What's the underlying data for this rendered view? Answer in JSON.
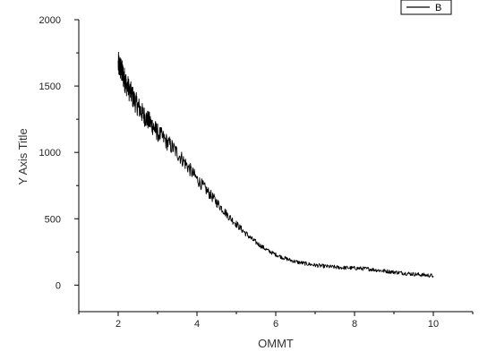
{
  "chart_data": {
    "type": "line",
    "xlabel": "OMMT",
    "ylabel": "Y Axis Title",
    "xlim": [
      1,
      11
    ],
    "ylim": [
      -200,
      2000
    ],
    "x_ticks": [
      2,
      4,
      6,
      8,
      10
    ],
    "y_ticks": [
      0,
      500,
      1000,
      1500,
      2000
    ],
    "grid": false,
    "legend_position": "top-right",
    "series": [
      {
        "name": "B",
        "color": "#000000",
        "x": [
          2.0,
          2.05,
          2.1,
          2.15,
          2.2,
          2.3,
          2.4,
          2.5,
          2.6,
          2.7,
          2.8,
          2.9,
          3.0,
          3.2,
          3.4,
          3.6,
          3.8,
          4.0,
          4.2,
          4.4,
          4.6,
          4.8,
          5.0,
          5.2,
          5.4,
          5.6,
          5.8,
          6.0,
          6.2,
          6.4,
          6.6,
          6.8,
          7.0,
          7.2,
          7.4,
          7.6,
          7.8,
          8.0,
          8.2,
          8.4,
          8.6,
          8.8,
          9.0,
          9.2,
          9.4,
          9.6,
          9.8,
          10.0
        ],
        "y": [
          1660,
          1640,
          1600,
          1560,
          1520,
          1460,
          1400,
          1350,
          1300,
          1260,
          1230,
          1190,
          1150,
          1090,
          1030,
          960,
          880,
          800,
          730,
          660,
          590,
          520,
          460,
          400,
          345,
          300,
          260,
          230,
          205,
          185,
          170,
          160,
          150,
          143,
          138,
          133,
          130,
          128,
          125,
          120,
          112,
          105,
          98,
          92,
          86,
          80,
          75,
          70
        ]
      }
    ]
  }
}
